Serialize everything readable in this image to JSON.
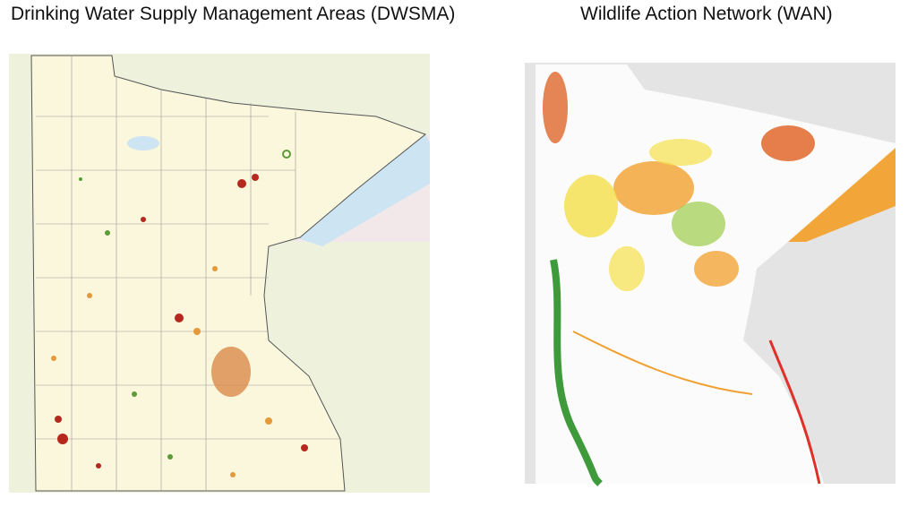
{
  "panels": [
    {
      "title": "Drinking Water Supply Management Areas (DWSMA)"
    },
    {
      "title": "Wildlife Action Network (WAN)"
    }
  ]
}
